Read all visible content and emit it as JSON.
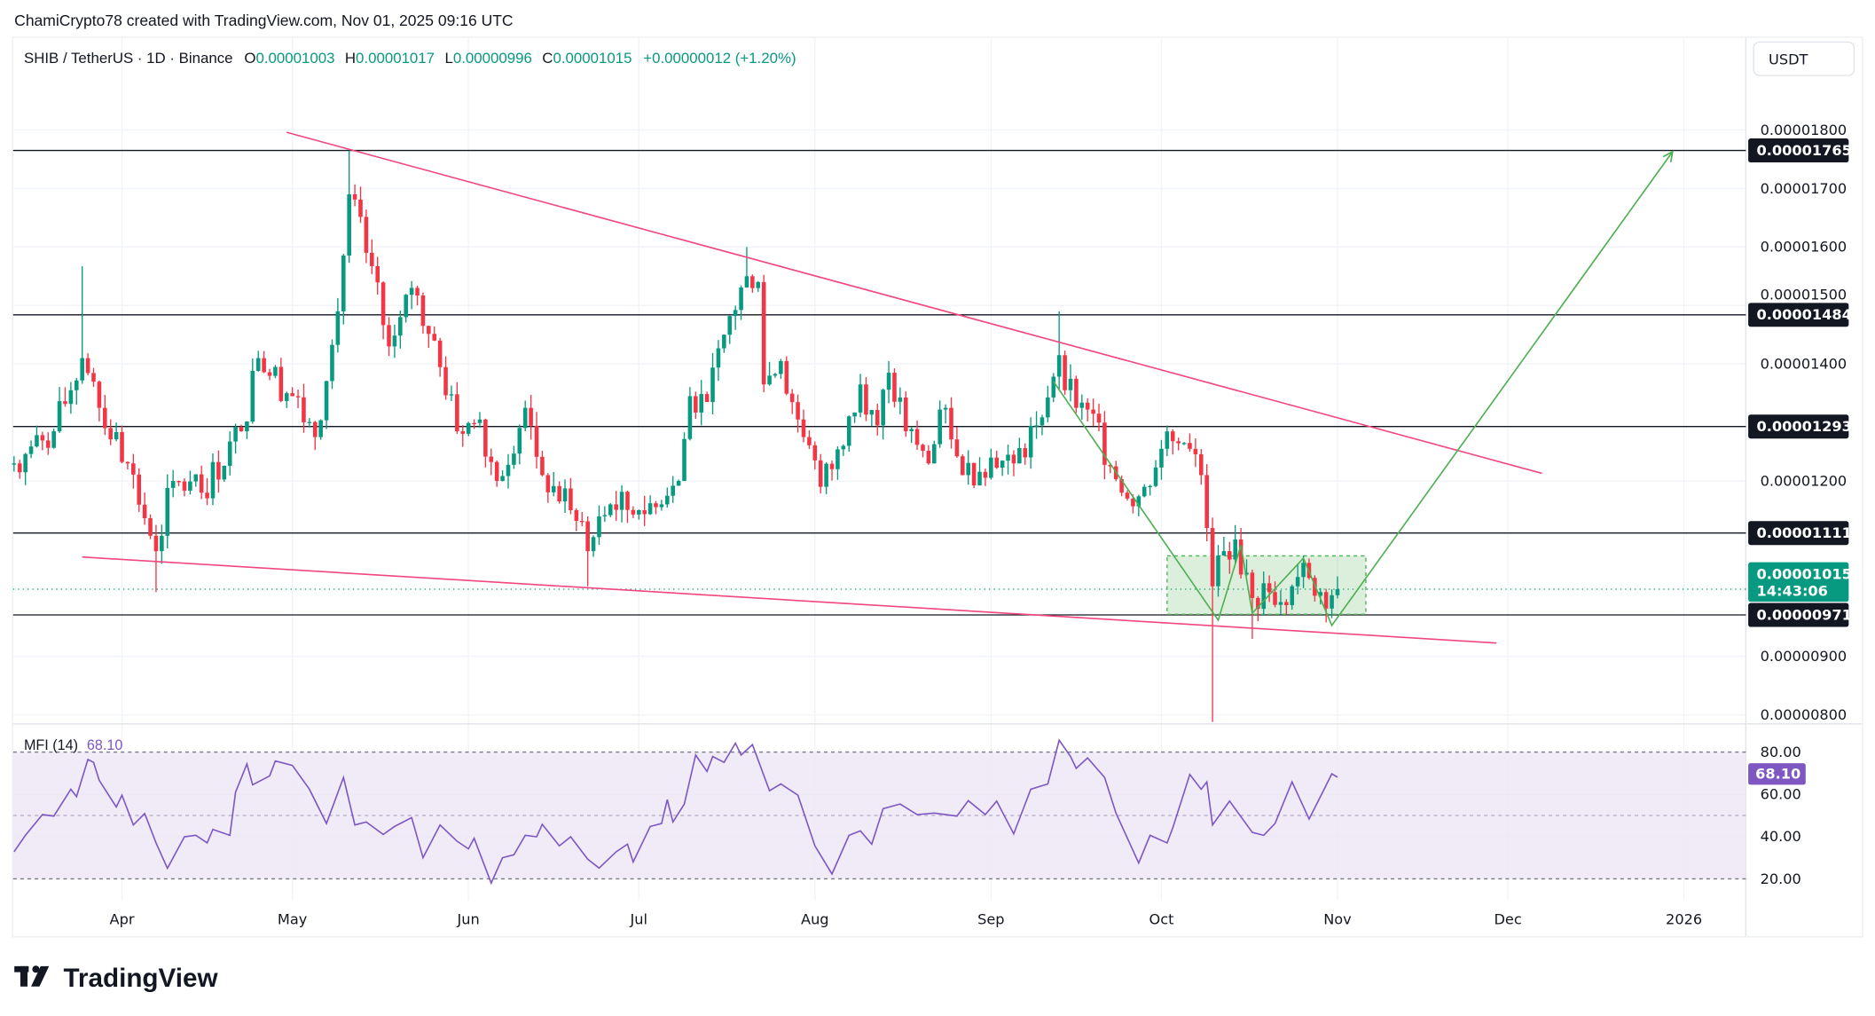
{
  "attribution": "ChamiCrypto78 created with TradingView.com, Nov 01, 2025 09:16 UTC",
  "legend": {
    "symbol": "SHIB / TetherUS · 1D · Binance",
    "o_label": "O",
    "o": "0.00001003",
    "h_label": "H",
    "h": "0.00001017",
    "l_label": "L",
    "l": "0.00000996",
    "c_label": "C",
    "c": "0.00001015",
    "change": "+0.00000012 (+1.20%)"
  },
  "currency_button": "USDT",
  "logo_text": "TradingView",
  "colors": {
    "up": "#089981",
    "down": "#f23645",
    "trendline": "#f2467e",
    "projection": "#4caf50",
    "mfi": "#7e57c2",
    "mfi_band": "#ede7f6",
    "level_line": "#131722",
    "last_price": "#089981"
  },
  "chart_data": {
    "type": "candlestick",
    "price_axis": {
      "range": [
        7.8e-06,
        1.86e-05
      ],
      "ticks": [
        "0.00001800",
        "0.00001700",
        "0.00001600",
        "0.00001500",
        "0.00001400",
        "0.00001200",
        "0.00000900",
        "0.00000800"
      ],
      "tick_values": [
        1.8e-05,
        1.7e-05,
        1.6e-05,
        1.5e-05,
        1.4e-05,
        1.2e-05,
        9e-06,
        8e-06
      ]
    },
    "time_axis": {
      "ticks": [
        "Apr",
        "May",
        "Jun",
        "Jul",
        "Aug",
        "Sep",
        "Oct",
        "Nov",
        "Dec",
        "2026"
      ],
      "tick_dates": [
        "2025-04-01",
        "2025-05-01",
        "2025-06-01",
        "2025-07-01",
        "2025-08-01",
        "2025-09-01",
        "2025-10-01",
        "2025-11-01",
        "2025-12-01",
        "2026-01-01"
      ]
    },
    "closes": [
      [
        "2025-03-13",
        1.23e-05
      ],
      [
        "2025-03-20",
        1.285e-05
      ],
      [
        "2025-03-25",
        1.41e-05
      ],
      [
        "2025-03-28",
        1.325e-05
      ],
      [
        "2025-04-02",
        1.23e-05
      ],
      [
        "2025-04-07",
        1.08e-05
      ],
      [
        "2025-04-10",
        1.2e-05
      ],
      [
        "2025-04-15",
        1.18e-05
      ],
      [
        "2025-04-22",
        1.285e-05
      ],
      [
        "2025-04-25",
        1.41e-05
      ],
      [
        "2025-05-01",
        1.345e-05
      ],
      [
        "2025-05-05",
        1.275e-05
      ],
      [
        "2025-05-09",
        1.49e-05
      ],
      [
        "2025-05-11",
        1.69e-05
      ],
      [
        "2025-05-14",
        1.59e-05
      ],
      [
        "2025-05-18",
        1.43e-05
      ],
      [
        "2025-05-22",
        1.53e-05
      ],
      [
        "2025-05-26",
        1.44e-05
      ],
      [
        "2025-05-30",
        1.285e-05
      ],
      [
        "2025-06-03",
        1.305e-05
      ],
      [
        "2025-06-06",
        1.2e-05
      ],
      [
        "2025-06-11",
        1.325e-05
      ],
      [
        "2025-06-14",
        1.21e-05
      ],
      [
        "2025-06-19",
        1.15e-05
      ],
      [
        "2025-06-22",
        1.08e-05
      ],
      [
        "2025-06-26",
        1.16e-05
      ],
      [
        "2025-07-01",
        1.15e-05
      ],
      [
        "2025-07-05",
        1.16e-05
      ],
      [
        "2025-07-08",
        1.2e-05
      ],
      [
        "2025-07-10",
        1.345e-05
      ],
      [
        "2025-07-13",
        1.335e-05
      ],
      [
        "2025-07-16",
        1.45e-05
      ],
      [
        "2025-07-20",
        1.55e-05
      ],
      [
        "2025-07-22",
        1.54e-05
      ],
      [
        "2025-07-23",
        1.365e-05
      ],
      [
        "2025-07-26",
        1.405e-05
      ],
      [
        "2025-07-30",
        1.275e-05
      ],
      [
        "2025-08-02",
        1.19e-05
      ],
      [
        "2025-08-06",
        1.26e-05
      ],
      [
        "2025-08-09",
        1.365e-05
      ],
      [
        "2025-08-12",
        1.295e-05
      ],
      [
        "2025-08-14",
        1.385e-05
      ],
      [
        "2025-08-17",
        1.285e-05
      ],
      [
        "2025-08-21",
        1.23e-05
      ],
      [
        "2025-08-24",
        1.325e-05
      ],
      [
        "2025-08-27",
        1.21e-05
      ],
      [
        "2025-09-01",
        1.24e-05
      ],
      [
        "2025-09-05",
        1.23e-05
      ],
      [
        "2025-09-09",
        1.295e-05
      ],
      [
        "2025-09-13",
        1.415e-05
      ],
      [
        "2025-09-16",
        1.325e-05
      ],
      [
        "2025-09-19",
        1.315e-05
      ],
      [
        "2025-09-22",
        1.225e-05
      ],
      [
        "2025-09-25",
        1.17e-05
      ],
      [
        "2025-09-28",
        1.19e-05
      ],
      [
        "2025-10-01",
        1.255e-05
      ],
      [
        "2025-10-05",
        1.265e-05
      ],
      [
        "2025-10-08",
        1.21e-05
      ],
      [
        "2025-10-10",
        1.02e-05
      ],
      [
        "2025-10-12",
        1.08e-05
      ],
      [
        "2025-10-14",
        1.1e-05
      ],
      [
        "2025-10-17",
        1e-05
      ],
      [
        "2025-10-20",
        1.01e-05
      ],
      [
        "2025-10-24",
        1.02e-05
      ],
      [
        "2025-10-26",
        1.06e-05
      ],
      [
        "2025-10-29",
        1.01e-05
      ],
      [
        "2025-11-01",
        1.015e-05
      ]
    ],
    "extreme_wicks": [
      {
        "date": "2025-03-25",
        "high": 1.567e-05
      },
      {
        "date": "2025-04-07",
        "low": 1.01e-05
      },
      {
        "date": "2025-05-11",
        "high": 1.765e-05
      },
      {
        "date": "2025-06-22",
        "low": 1.02e-05
      },
      {
        "date": "2025-07-20",
        "high": 1.6e-05
      },
      {
        "date": "2025-09-13",
        "high": 1.49e-05
      },
      {
        "date": "2025-10-10",
        "low": 7.88e-06
      },
      {
        "date": "2025-10-17",
        "low": 9.3e-06
      }
    ],
    "horizontal_levels": [
      "0.00001765",
      "0.00001484",
      "0.00001293",
      "0.00001111",
      "0.00000971"
    ],
    "last_price": {
      "value": "0.00001015",
      "countdown": "14:43:06"
    },
    "trendlines": [
      {
        "name": "upper",
        "from": [
          "2025-04-30",
          1.796e-05
        ],
        "to": [
          "2025-12-07",
          1.213e-05
        ]
      },
      {
        "name": "lower",
        "from": [
          "2025-03-25",
          1.07e-05
        ],
        "to": [
          "2025-11-29",
          9.23e-06
        ]
      }
    ],
    "projection_path": [
      [
        "2025-09-12",
        1.37e-05
      ],
      [
        "2025-10-11",
        9.62e-06
      ],
      [
        "2025-10-15",
        1.09e-05
      ],
      [
        "2025-10-17",
        9.74e-06
      ],
      [
        "2025-10-26",
        1.068e-05
      ],
      [
        "2025-10-31",
        9.53e-06
      ],
      [
        "2025-12-30",
        1.763e-05
      ]
    ],
    "range_box": {
      "from": "2025-10-02",
      "to": "2025-11-06",
      "top": 1.072e-05,
      "bottom": 9.72e-06
    },
    "mfi": {
      "title": "MFI (14)",
      "value": "68.10",
      "ticks": [
        "80.00",
        "60.00",
        "40.00",
        "20.00"
      ],
      "tick_values": [
        80,
        60,
        40,
        20
      ],
      "band": [
        20,
        80
      ],
      "middle": 50,
      "range": [
        14,
        90
      ],
      "points": [
        [
          "2025-03-13",
          32.8
        ],
        [
          "2025-03-15",
          40.6
        ],
        [
          "2025-03-18",
          50.4
        ],
        [
          "2025-03-20",
          49.7
        ],
        [
          "2025-03-23",
          62.4
        ],
        [
          "2025-03-24",
          58.9
        ],
        [
          "2025-03-26",
          76.5
        ],
        [
          "2025-03-27",
          75.1
        ],
        [
          "2025-03-28",
          66.6
        ],
        [
          "2025-03-31",
          54
        ],
        [
          "2025-04-01",
          59.6
        ],
        [
          "2025-04-03",
          45.5
        ],
        [
          "2025-04-05",
          50.9
        ],
        [
          "2025-04-07",
          37
        ],
        [
          "2025-04-09",
          25
        ],
        [
          "2025-04-12",
          39.9
        ],
        [
          "2025-04-14",
          40.6
        ],
        [
          "2025-04-16",
          37
        ],
        [
          "2025-04-17",
          43.4
        ],
        [
          "2025-04-20",
          40.6
        ],
        [
          "2025-04-21",
          61
        ],
        [
          "2025-04-23",
          74.4
        ],
        [
          "2025-04-24",
          64.5
        ],
        [
          "2025-04-27",
          68.7
        ],
        [
          "2025-04-28",
          75.8
        ],
        [
          "2025-05-01",
          73.7
        ],
        [
          "2025-05-04",
          62.4
        ],
        [
          "2025-05-07",
          46.2
        ],
        [
          "2025-05-10",
          68
        ],
        [
          "2025-05-12",
          45.5
        ],
        [
          "2025-05-14",
          46.9
        ],
        [
          "2025-05-17",
          41
        ],
        [
          "2025-05-19",
          44.8
        ],
        [
          "2025-05-22",
          49
        ],
        [
          "2025-05-24",
          30
        ],
        [
          "2025-05-27",
          45.5
        ],
        [
          "2025-05-30",
          37.8
        ],
        [
          "2025-06-01",
          34.2
        ],
        [
          "2025-06-02",
          39.2
        ],
        [
          "2025-06-05",
          18
        ],
        [
          "2025-06-07",
          30
        ],
        [
          "2025-06-09",
          31.4
        ],
        [
          "2025-06-11",
          40.6
        ],
        [
          "2025-06-13",
          39.9
        ],
        [
          "2025-06-14",
          45.8
        ],
        [
          "2025-06-17",
          35.6
        ],
        [
          "2025-06-19",
          39.9
        ],
        [
          "2025-06-22",
          29.3
        ],
        [
          "2025-06-24",
          25.1
        ],
        [
          "2025-06-27",
          32.8
        ],
        [
          "2025-06-29",
          36.4
        ],
        [
          "2025-06-30",
          28
        ],
        [
          "2025-07-03",
          44.8
        ],
        [
          "2025-07-05",
          46.2
        ],
        [
          "2025-07-06",
          57.5
        ],
        [
          "2025-07-07",
          46.9
        ],
        [
          "2025-07-09",
          55.4
        ],
        [
          "2025-07-11",
          78.6
        ],
        [
          "2025-07-13",
          70.8
        ],
        [
          "2025-07-14",
          77.9
        ],
        [
          "2025-07-16",
          75.1
        ],
        [
          "2025-07-18",
          84.2
        ],
        [
          "2025-07-19",
          78.6
        ],
        [
          "2025-07-21",
          83.5
        ],
        [
          "2025-07-24",
          61.7
        ],
        [
          "2025-07-26",
          64.9
        ],
        [
          "2025-07-29",
          59.6
        ],
        [
          "2025-08-01",
          35.6
        ],
        [
          "2025-08-04",
          22.3
        ],
        [
          "2025-08-07",
          40.6
        ],
        [
          "2025-08-09",
          42.7
        ],
        [
          "2025-08-11",
          36.4
        ],
        [
          "2025-08-13",
          53.2
        ],
        [
          "2025-08-16",
          55.4
        ],
        [
          "2025-08-19",
          50.4
        ],
        [
          "2025-08-22",
          51.1
        ],
        [
          "2025-08-26",
          49.7
        ],
        [
          "2025-08-28",
          57
        ],
        [
          "2025-08-31",
          50.4
        ],
        [
          "2025-09-02",
          56.8
        ],
        [
          "2025-09-05",
          41.3
        ],
        [
          "2025-09-08",
          62.4
        ],
        [
          "2025-09-11",
          64.9
        ],
        [
          "2025-09-13",
          85.6
        ],
        [
          "2025-09-15",
          77.9
        ],
        [
          "2025-09-16",
          72.3
        ],
        [
          "2025-09-18",
          77.2
        ],
        [
          "2025-09-21",
          68
        ],
        [
          "2025-09-23",
          51.1
        ],
        [
          "2025-09-27",
          27.5
        ],
        [
          "2025-09-29",
          40.6
        ],
        [
          "2025-10-02",
          37
        ],
        [
          "2025-10-03",
          44.1
        ],
        [
          "2025-10-06",
          69.4
        ],
        [
          "2025-10-08",
          62.4
        ],
        [
          "2025-10-09",
          65.9
        ],
        [
          "2025-10-10",
          45.5
        ],
        [
          "2025-10-13",
          56.8
        ],
        [
          "2025-10-17",
          42
        ],
        [
          "2025-10-19",
          40.6
        ],
        [
          "2025-10-21",
          46.2
        ],
        [
          "2025-10-24",
          65.9
        ],
        [
          "2025-10-27",
          48.3
        ],
        [
          "2025-10-29",
          58.9
        ],
        [
          "2025-10-31",
          69.7
        ],
        [
          "2025-11-01",
          68.1
        ]
      ]
    }
  }
}
